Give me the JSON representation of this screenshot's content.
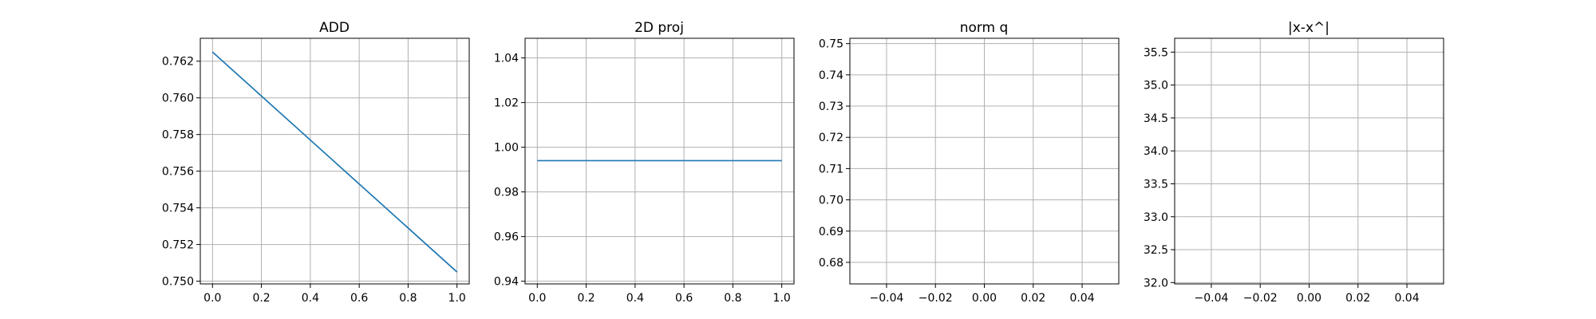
{
  "colors": {
    "series": "#1f77b4"
  },
  "chart_data": [
    {
      "type": "line",
      "title": "ADD",
      "xlabel": "",
      "ylabel": "",
      "grid": true,
      "xlim": [
        -0.05,
        1.05
      ],
      "ylim": [
        0.74985,
        0.76325
      ],
      "xticks": [
        0.0,
        0.2,
        0.4,
        0.6,
        0.8,
        1.0
      ],
      "xtick_labels": [
        "0.0",
        "0.2",
        "0.4",
        "0.6",
        "0.8",
        "1.0"
      ],
      "yticks": [
        0.75,
        0.752,
        0.754,
        0.756,
        0.758,
        0.76,
        0.762
      ],
      "ytick_labels": [
        "0.750",
        "0.752",
        "0.754",
        "0.756",
        "0.758",
        "0.760",
        "0.762"
      ],
      "series": [
        {
          "x": [
            0.0,
            1.0
          ],
          "y": [
            0.7625,
            0.7505
          ]
        }
      ]
    },
    {
      "type": "line",
      "title": "2D proj",
      "xlabel": "",
      "ylabel": "",
      "grid": true,
      "xlim": [
        -0.05,
        1.05
      ],
      "ylim": [
        0.9388,
        1.0488
      ],
      "xticks": [
        0.0,
        0.2,
        0.4,
        0.6,
        0.8,
        1.0
      ],
      "xtick_labels": [
        "0.0",
        "0.2",
        "0.4",
        "0.6",
        "0.8",
        "1.0"
      ],
      "yticks": [
        0.94,
        0.96,
        0.98,
        1.0,
        1.02,
        1.04
      ],
      "ytick_labels": [
        "0.94",
        "0.96",
        "0.98",
        "1.00",
        "1.02",
        "1.04"
      ],
      "series": [
        {
          "x": [
            0.0,
            1.0
          ],
          "y": [
            0.994,
            0.994
          ]
        }
      ]
    },
    {
      "type": "line",
      "title": "norm q",
      "xlabel": "",
      "ylabel": "",
      "grid": true,
      "xlim": [
        -0.055,
        0.055
      ],
      "ylim": [
        0.6731,
        0.7517
      ],
      "xticks": [
        -0.04,
        -0.02,
        0.0,
        0.02,
        0.04
      ],
      "xtick_labels": [
        "−0.04",
        "−0.02",
        "0.00",
        "0.02",
        "0.04"
      ],
      "yticks": [
        0.68,
        0.69,
        0.7,
        0.71,
        0.72,
        0.73,
        0.74,
        0.75
      ],
      "ytick_labels": [
        "0.68",
        "0.69",
        "0.70",
        "0.71",
        "0.72",
        "0.73",
        "0.74",
        "0.75"
      ],
      "series": []
    },
    {
      "type": "line",
      "title": "|x-x^|",
      "xlabel": "",
      "ylabel": "",
      "grid": true,
      "xlim": [
        -0.055,
        0.055
      ],
      "ylim": [
        31.98,
        35.71
      ],
      "xticks": [
        -0.04,
        -0.02,
        0.0,
        0.02,
        0.04
      ],
      "xtick_labels": [
        "−0.04",
        "−0.02",
        "0.00",
        "0.02",
        "0.04"
      ],
      "yticks": [
        32.0,
        32.5,
        33.0,
        33.5,
        34.0,
        34.5,
        35.0,
        35.5
      ],
      "ytick_labels": [
        "32.0",
        "32.5",
        "33.0",
        "33.5",
        "34.0",
        "34.5",
        "35.0",
        "35.5"
      ],
      "series": []
    }
  ]
}
